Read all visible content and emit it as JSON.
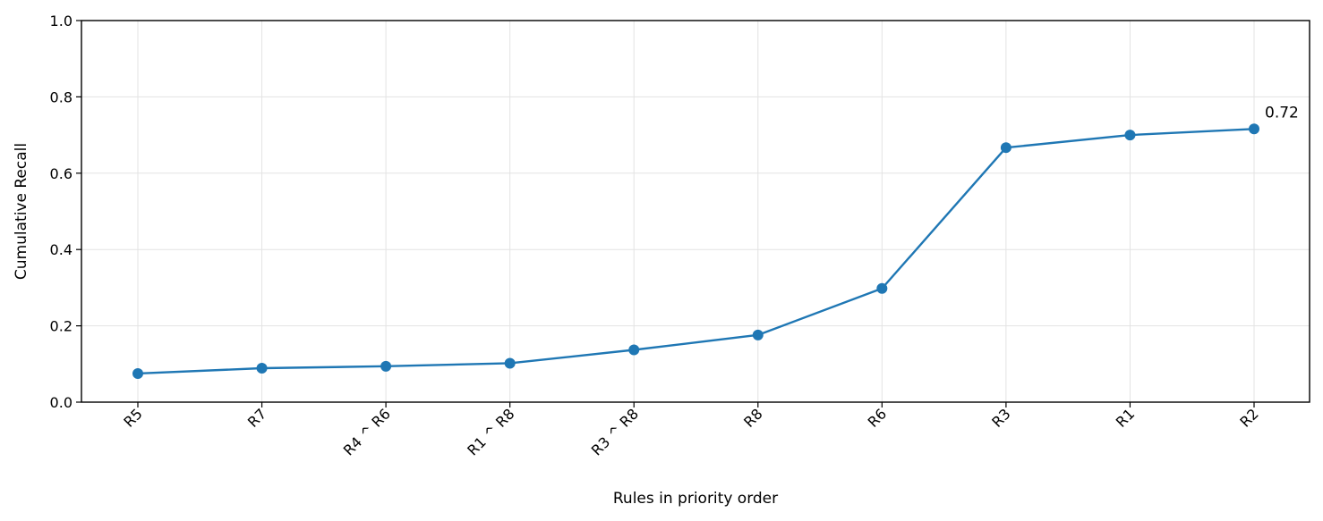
{
  "chart_data": {
    "type": "line",
    "categories": [
      "R5",
      "R7",
      "R4 ^ R6",
      "R1 ^ R8",
      "R3 ^ R8",
      "R8",
      "R6",
      "R3",
      "R1",
      "R2"
    ],
    "series": [
      {
        "values": [
          0.075,
          0.089,
          0.094,
          0.102,
          0.137,
          0.176,
          0.298,
          0.667,
          0.7,
          0.716
        ],
        "color": "#1f77b4"
      }
    ],
    "title": "",
    "xlabel": "Rules in priority order",
    "ylabel": "Cumulative Recall",
    "ylim": [
      0,
      1.0
    ],
    "yticks": [
      0.0,
      0.2,
      0.4,
      0.6,
      0.8,
      1.0
    ],
    "ytick_labels": [
      "0.0",
      "0.2",
      "0.4",
      "0.6",
      "0.8",
      "1.0"
    ],
    "grid": true,
    "annotations": [
      {
        "category": "R2",
        "text": "0.72"
      }
    ]
  }
}
